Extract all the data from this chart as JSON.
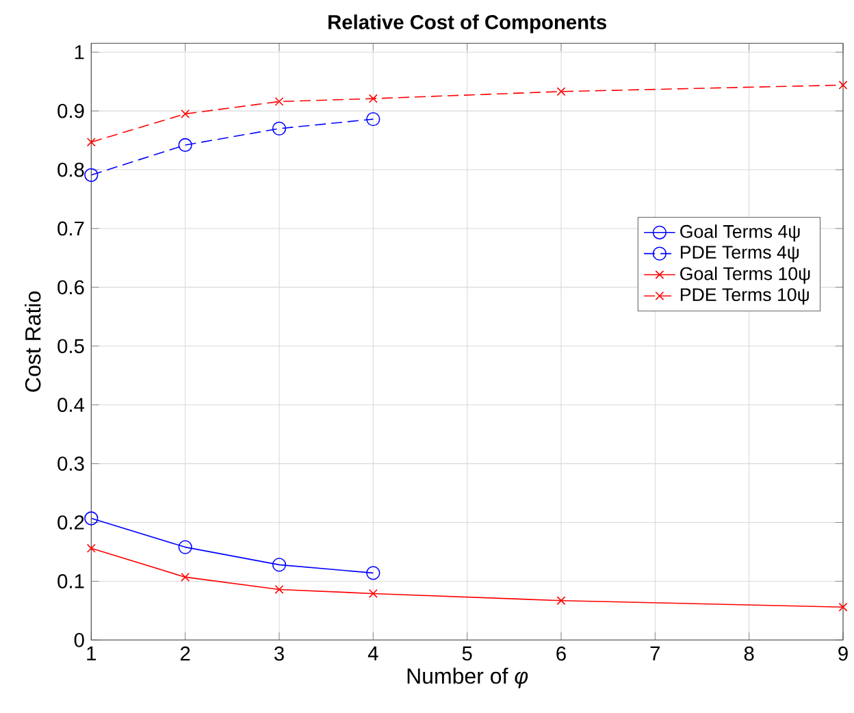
{
  "chart_data": {
    "type": "line",
    "title": "**Relative Cost of Components**",
    "xlabel": "Number of *φ*",
    "ylabel": "Cost Ratio",
    "xlim": [
      1,
      9
    ],
    "ylim": [
      0,
      1.015
    ],
    "xticks": [
      1,
      2,
      3,
      4,
      5,
      6,
      7,
      8,
      9
    ],
    "yticks": [
      0,
      0.1,
      0.2,
      0.3,
      0.4,
      0.5,
      0.6,
      0.7,
      0.8,
      0.9,
      1
    ],
    "grid": true,
    "legend": "right",
    "series": [
      {
        "name": "Goal Terms 4ψ",
        "color": "#0000ff",
        "marker": "circle",
        "line_style": "solid",
        "x": [
          1,
          2,
          3,
          4
        ],
        "values": [
          0.207,
          0.158,
          0.128,
          0.114
        ]
      },
      {
        "name": "PDE Terms 4ψ",
        "color": "#0000ff",
        "marker": "circle",
        "line_style": "dashed",
        "x": [
          1,
          2,
          3,
          4
        ],
        "values": [
          0.791,
          0.842,
          0.87,
          0.886
        ]
      },
      {
        "name": "Goal Terms 10ψ",
        "color": "#ff0000",
        "marker": "cross",
        "line_style": "solid",
        "x": [
          1,
          2,
          3,
          4,
          6,
          9
        ],
        "values": [
          0.156,
          0.107,
          0.086,
          0.079,
          0.067,
          0.056
        ]
      },
      {
        "name": "PDE Terms 10ψ",
        "color": "#ff0000",
        "marker": "cross",
        "line_style": "dashed",
        "x": [
          1,
          2,
          3,
          4,
          6,
          9
        ],
        "values": [
          0.847,
          0.895,
          0.916,
          0.921,
          0.933,
          0.944
        ]
      }
    ]
  }
}
